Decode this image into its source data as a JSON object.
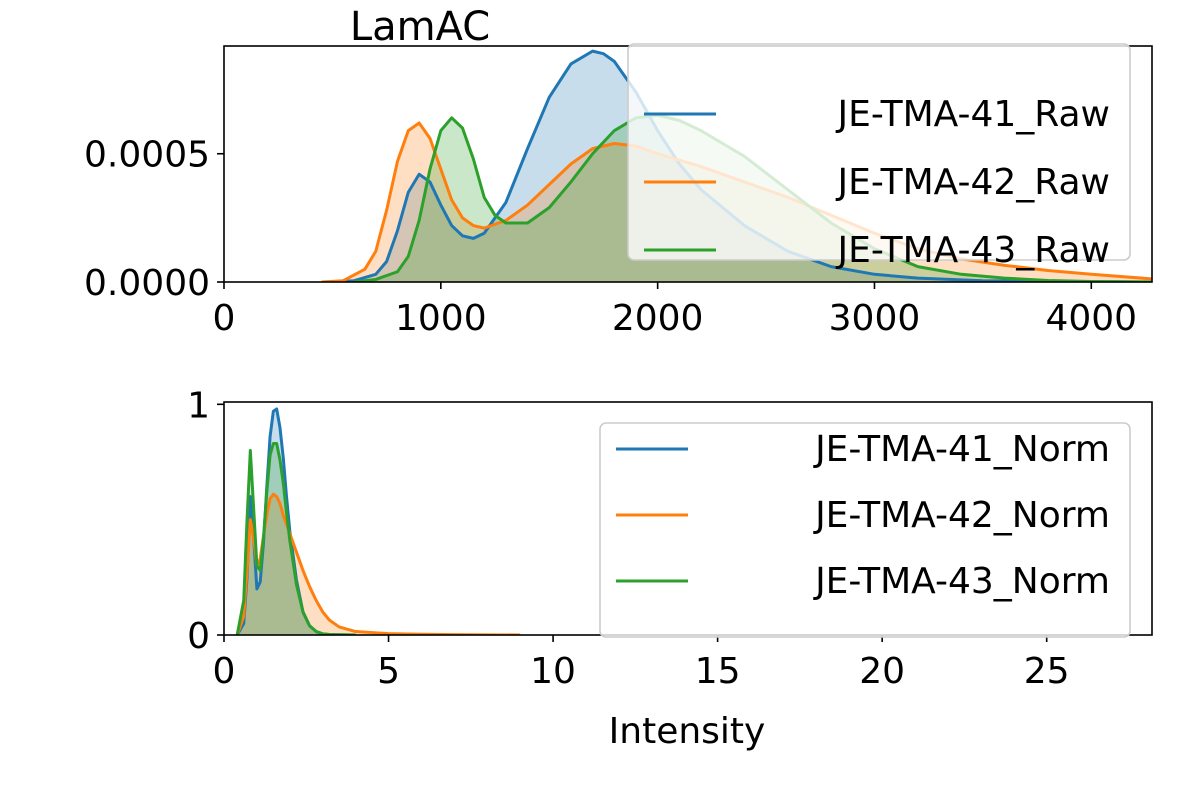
{
  "chart_data": [
    {
      "type": "area",
      "title": "LamAC",
      "xlabel": "",
      "ylabel": "",
      "xlim": [
        0,
        4280
      ],
      "ylim": [
        0,
        0.00092
      ],
      "xticks": [
        0,
        1000,
        2000,
        3000,
        4000
      ],
      "xtick_labels": [
        "0",
        "1000",
        "2000",
        "3000",
        "4000"
      ],
      "yticks": [
        0,
        0.0005
      ],
      "ytick_labels": [
        "0.0000",
        "0.0005"
      ],
      "legend_position": "upper-right",
      "grid": false,
      "series": [
        {
          "name": "JE-TMA-41_Raw",
          "color": "#1f77b4",
          "x": [
            500,
            600,
            700,
            750,
            800,
            850,
            900,
            950,
            1000,
            1050,
            1100,
            1150,
            1200,
            1300,
            1400,
            1500,
            1600,
            1700,
            1750,
            1800,
            1900,
            2000,
            2100,
            2200,
            2400,
            2600,
            2800,
            3000,
            3200,
            3500,
            4280
          ],
          "y": [
            0,
            5e-06,
            3e-05,
            8e-05,
            0.0002,
            0.00035,
            0.00042,
            0.00039,
            0.0003,
            0.00022,
            0.00018,
            0.00017,
            0.00019,
            0.00031,
            0.00052,
            0.00072,
            0.00085,
            0.0009,
            0.00089,
            0.00086,
            0.00074,
            0.00059,
            0.00046,
            0.00036,
            0.00022,
            0.00012,
            6e-05,
            3e-05,
            1.5e-05,
            5e-06,
            0
          ]
        },
        {
          "name": "JE-TMA-42_Raw",
          "color": "#ff7f0e",
          "x": [
            450,
            550,
            650,
            700,
            750,
            800,
            850,
            900,
            950,
            1000,
            1050,
            1100,
            1150,
            1200,
            1300,
            1400,
            1500,
            1600,
            1700,
            1800,
            1900,
            2000,
            2200,
            2400,
            2600,
            2800,
            3000,
            3200,
            3400,
            3600,
            3800,
            4000,
            4280
          ],
          "y": [
            0,
            5e-06,
            5e-05,
            0.00012,
            0.00028,
            0.00047,
            0.00059,
            0.00062,
            0.00056,
            0.00044,
            0.00032,
            0.00025,
            0.00022,
            0.00021,
            0.00024,
            0.0003,
            0.00038,
            0.00046,
            0.00052,
            0.00054,
            0.00053,
            0.0005,
            0.00045,
            0.00039,
            0.00033,
            0.00026,
            0.00019,
            0.00013,
            9e-05,
            6.5e-05,
            4.5e-05,
            3e-05,
            1.2e-05
          ]
        },
        {
          "name": "JE-TMA-43_Raw",
          "color": "#2ca02c",
          "x": [
            600,
            700,
            800,
            850,
            900,
            950,
            1000,
            1050,
            1100,
            1150,
            1200,
            1250,
            1300,
            1400,
            1500,
            1600,
            1700,
            1800,
            1900,
            2000,
            2100,
            2200,
            2400,
            2600,
            2800,
            3000,
            3200,
            3400,
            3600,
            3800,
            4000,
            4280
          ],
          "y": [
            0,
            1e-05,
            4e-05,
            0.0001,
            0.00024,
            0.00044,
            0.00059,
            0.00064,
            0.0006,
            0.00048,
            0.00033,
            0.00026,
            0.00023,
            0.00023,
            0.00029,
            0.00039,
            0.0005,
            0.00059,
            0.00064,
            0.00065,
            0.00063,
            0.00059,
            0.00049,
            0.00036,
            0.00023,
            0.00013,
            6e-05,
            3e-05,
            1.5e-05,
            6e-06,
            2e-06,
            0
          ]
        }
      ]
    },
    {
      "type": "area",
      "title": "",
      "xlabel": "Intensity",
      "ylabel": "",
      "xlim": [
        0,
        28.2
      ],
      "ylim": [
        0,
        1.01
      ],
      "xticks": [
        0,
        5,
        10,
        15,
        20,
        25
      ],
      "xtick_labels": [
        "0",
        "5",
        "10",
        "15",
        "20",
        "25"
      ],
      "yticks": [
        0,
        1
      ],
      "ytick_labels": [
        "0",
        "1"
      ],
      "legend_position": "upper-right",
      "grid": false,
      "series": [
        {
          "name": "JE-TMA-41_Norm",
          "color": "#1f77b4",
          "x": [
            0.4,
            0.6,
            0.7,
            0.8,
            0.9,
            1.0,
            1.1,
            1.2,
            1.3,
            1.4,
            1.5,
            1.6,
            1.7,
            1.8,
            1.9,
            2.0,
            2.2,
            2.4,
            2.6,
            2.8,
            3.0,
            3.2,
            3.5,
            4.0
          ],
          "y": [
            0,
            0.05,
            0.25,
            0.6,
            0.42,
            0.2,
            0.23,
            0.4,
            0.64,
            0.86,
            0.97,
            0.98,
            0.9,
            0.77,
            0.6,
            0.45,
            0.24,
            0.1,
            0.04,
            0.015,
            0.005,
            0.002,
            0.001,
            0
          ]
        },
        {
          "name": "JE-TMA-42_Norm",
          "color": "#ff7f0e",
          "x": [
            0.4,
            0.6,
            0.7,
            0.8,
            0.9,
            1.0,
            1.1,
            1.2,
            1.3,
            1.4,
            1.5,
            1.6,
            1.7,
            1.8,
            2.0,
            2.2,
            2.4,
            2.6,
            2.8,
            3.0,
            3.2,
            3.5,
            4.0,
            5.0,
            6.0,
            7.0,
            9.0
          ],
          "y": [
            0,
            0.08,
            0.28,
            0.5,
            0.42,
            0.3,
            0.33,
            0.43,
            0.52,
            0.59,
            0.61,
            0.6,
            0.57,
            0.52,
            0.44,
            0.36,
            0.28,
            0.21,
            0.15,
            0.1,
            0.065,
            0.035,
            0.015,
            0.006,
            0.003,
            0.0015,
            0
          ]
        },
        {
          "name": "JE-TMA-43_Norm",
          "color": "#2ca02c",
          "x": [
            0.4,
            0.6,
            0.7,
            0.8,
            0.9,
            1.0,
            1.1,
            1.2,
            1.3,
            1.4,
            1.5,
            1.6,
            1.7,
            1.8,
            1.9,
            2.0,
            2.2,
            2.4,
            2.6,
            2.8,
            3.0,
            3.2,
            3.5,
            4.0
          ],
          "y": [
            0,
            0.15,
            0.5,
            0.8,
            0.55,
            0.3,
            0.28,
            0.42,
            0.62,
            0.78,
            0.83,
            0.83,
            0.76,
            0.66,
            0.53,
            0.41,
            0.22,
            0.1,
            0.04,
            0.015,
            0.005,
            0.002,
            0.001,
            0
          ]
        }
      ]
    }
  ]
}
